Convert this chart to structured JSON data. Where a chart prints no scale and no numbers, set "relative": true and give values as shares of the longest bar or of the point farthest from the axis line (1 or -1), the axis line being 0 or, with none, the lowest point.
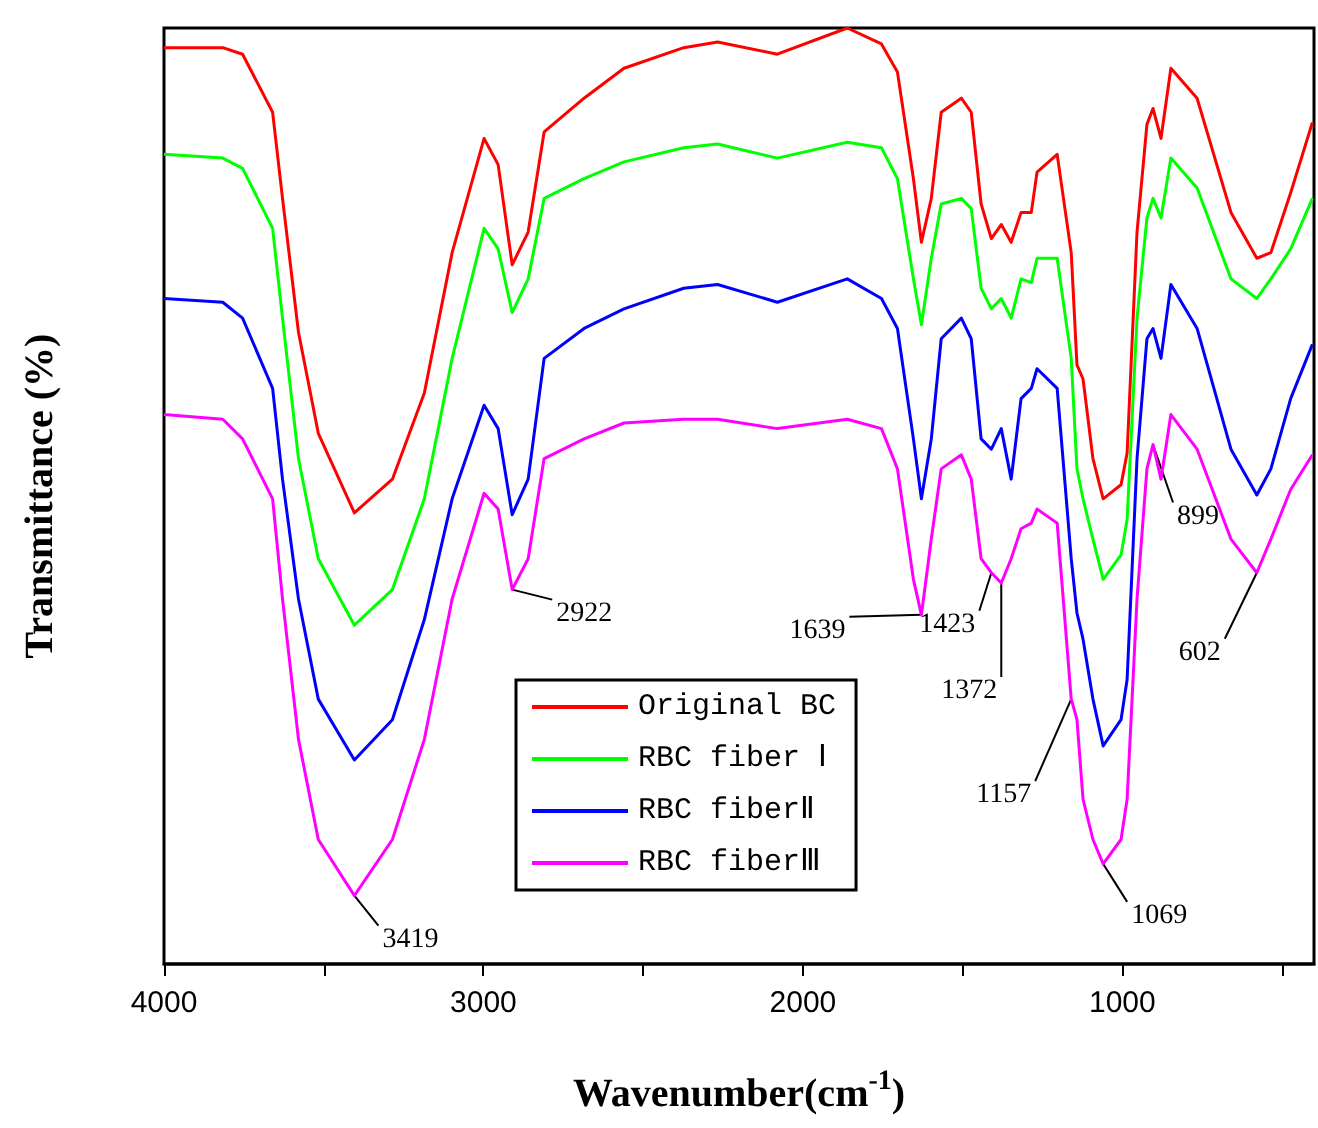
{
  "chart_data": {
    "type": "line",
    "relative": true,
    "xlabel": "Wavenumber(cm$^{-1}$)",
    "ylabel": "Transmittance (%)",
    "xlim": [
      4000,
      400
    ],
    "xticks": [
      4000,
      {
        "value": 3500,
        "label": null
      },
      3000,
      {
        "value": 2500,
        "label": null
      },
      2000,
      {
        "value": 1500,
        "label": null
      },
      1000,
      {
        "value": 500,
        "label": null
      }
    ],
    "x": [
      4000,
      3816,
      3754,
      3660,
      3629,
      3579,
      3517,
      3404,
      3285,
      3185,
      3098,
      2998,
      2954,
      2910,
      2860,
      2810,
      2685,
      2560,
      2373,
      2267,
      2080,
      1861,
      1754,
      1704,
      1654,
      1629,
      1598,
      1567,
      1504,
      1473,
      1442,
      1410,
      1379,
      1348,
      1317,
      1285,
      1267,
      1204,
      1160,
      1142,
      1123,
      1092,
      1060,
      1004,
      985,
      954,
      923,
      904,
      879,
      848,
      766,
      660,
      579,
      535,
      473,
      405
    ],
    "series": [
      {
        "name": "Original BC",
        "color": "#ff0000",
        "values": [
          0.979,
          0.979,
          0.972,
          0.91,
          0.818,
          0.675,
          0.567,
          0.482,
          0.518,
          0.61,
          0.76,
          0.882,
          0.854,
          0.747,
          0.782,
          0.889,
          0.925,
          0.957,
          0.979,
          0.985,
          0.972,
          1.0,
          0.983,
          0.953,
          0.839,
          0.771,
          0.818,
          0.91,
          0.925,
          0.91,
          0.812,
          0.775,
          0.79,
          0.771,
          0.803,
          0.803,
          0.846,
          0.865,
          0.76,
          0.64,
          0.625,
          0.54,
          0.497,
          0.512,
          0.546,
          0.782,
          0.897,
          0.914,
          0.882,
          0.957,
          0.925,
          0.803,
          0.754,
          0.76,
          0.824,
          0.899
        ]
      },
      {
        "name": "RBC fiber Ⅰ",
        "color": "#00ff00",
        "values": [
          0.865,
          0.861,
          0.85,
          0.786,
          0.69,
          0.54,
          0.433,
          0.362,
          0.4,
          0.497,
          0.647,
          0.786,
          0.764,
          0.696,
          0.732,
          0.818,
          0.839,
          0.857,
          0.872,
          0.876,
          0.861,
          0.878,
          0.872,
          0.839,
          0.732,
          0.683,
          0.754,
          0.812,
          0.818,
          0.807,
          0.722,
          0.7,
          0.711,
          0.69,
          0.732,
          0.728,
          0.754,
          0.754,
          0.647,
          0.529,
          0.497,
          0.454,
          0.411,
          0.437,
          0.475,
          0.69,
          0.797,
          0.818,
          0.797,
          0.861,
          0.829,
          0.732,
          0.711,
          0.732,
          0.764,
          0.818
        ]
      },
      {
        "name": "RBC fiberⅡ",
        "color": "#0000ff",
        "values": [
          0.711,
          0.707,
          0.69,
          0.615,
          0.518,
          0.39,
          0.283,
          0.218,
          0.261,
          0.368,
          0.497,
          0.597,
          0.572,
          0.48,
          0.518,
          0.647,
          0.679,
          0.7,
          0.722,
          0.726,
          0.707,
          0.732,
          0.711,
          0.679,
          0.561,
          0.497,
          0.561,
          0.668,
          0.69,
          0.668,
          0.561,
          0.55,
          0.572,
          0.518,
          0.604,
          0.615,
          0.636,
          0.615,
          0.433,
          0.375,
          0.347,
          0.283,
          0.233,
          0.261,
          0.304,
          0.54,
          0.668,
          0.679,
          0.647,
          0.726,
          0.679,
          0.55,
          0.501,
          0.529,
          0.604,
          0.662
        ]
      },
      {
        "name": "RBC fiberⅢ",
        "color": "#ff00ff",
        "values": [
          0.587,
          0.582,
          0.561,
          0.497,
          0.39,
          0.24,
          0.133,
          0.073,
          0.133,
          0.24,
          0.39,
          0.503,
          0.486,
          0.4,
          0.433,
          0.54,
          0.561,
          0.578,
          0.582,
          0.582,
          0.572,
          0.582,
          0.572,
          0.529,
          0.411,
          0.373,
          0.454,
          0.529,
          0.544,
          0.518,
          0.433,
          0.418,
          0.407,
          0.433,
          0.465,
          0.471,
          0.486,
          0.471,
          0.283,
          0.261,
          0.176,
          0.133,
          0.107,
          0.133,
          0.176,
          0.39,
          0.529,
          0.555,
          0.518,
          0.587,
          0.55,
          0.454,
          0.418,
          0.454,
          0.507,
          0.544
        ]
      }
    ],
    "annotations": [
      {
        "text": "3419",
        "x": 3404,
        "y": 0.073
      },
      {
        "text": "2922",
        "x": 2910,
        "y": 0.4
      },
      {
        "text": "1639",
        "x": 1629,
        "y": 0.373
      },
      {
        "text": "1423",
        "x": 1410,
        "y": 0.418
      },
      {
        "text": "1372",
        "x": 1379,
        "y": 0.407
      },
      {
        "text": "1157",
        "x": 1160,
        "y": 0.283
      },
      {
        "text": "1069",
        "x": 1060,
        "y": 0.107
      },
      {
        "text": "899",
        "x": 904,
        "y": 0.555
      },
      {
        "text": "602",
        "x": 579,
        "y": 0.418
      }
    ],
    "legend": "bottom",
    "marker": "none",
    "line_style": "solid",
    "grid": false
  }
}
